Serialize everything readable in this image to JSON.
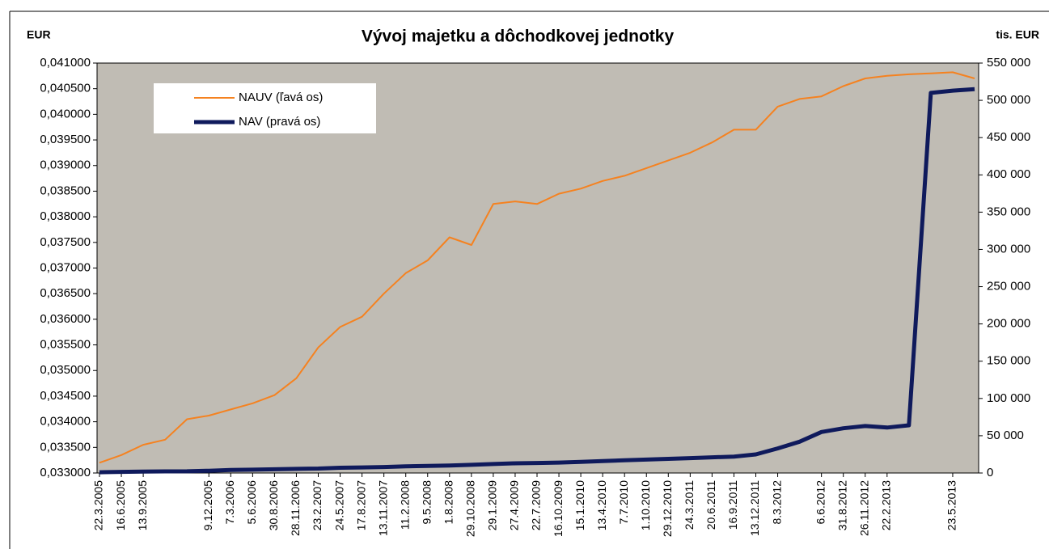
{
  "chart_data": {
    "type": "line",
    "title": "Vývoj majetku a dôchodkovej jednotky",
    "y_axis_label": "EUR",
    "y2_axis_label": "tis. EUR",
    "categories": [
      "22.3.2005",
      "16.6.2005",
      "13.9.2005",
      null,
      null,
      "9.12.2005",
      "7.3.2006",
      "5.6.2006",
      "30.8.2006",
      "28.11.2006",
      "23.2.2007",
      "24.5.2007",
      "17.8.2007",
      "13.11.2007",
      "11.2.2008",
      "9.5.2008",
      "1.8.2008",
      "29.10.2008",
      "29.1.2009",
      "27.4.2009",
      "22.7.2009",
      "16.10.2009",
      "15.1.2010",
      "13.4.2010",
      "7.7.2010",
      "1.10.2010",
      "29.12.2010",
      "24.3.2011",
      "20.6.2011",
      "16.9.2011",
      "13.12.2011",
      "8.3.2012",
      null,
      "6.6.2012",
      "31.8.2012",
      "26.11.2012",
      "22.2.2013",
      null,
      null,
      "23.5.2013",
      null
    ],
    "series": [
      {
        "name": "NAUV (ľavá os)",
        "color": "#f58220",
        "width": 2,
        "values": [
          0.0332,
          0.03335,
          0.03355,
          0.03365,
          0.03405,
          0.03412,
          0.03424,
          0.03436,
          0.03452,
          0.03485,
          0.03545,
          0.03585,
          0.03605,
          0.0365,
          0.0369,
          0.03715,
          0.0376,
          0.03745,
          0.03825,
          0.0383,
          0.03825,
          0.03845,
          0.03855,
          0.0387,
          0.0388,
          0.03895,
          0.0391,
          0.03925,
          0.03945,
          0.0397,
          0.0397,
          0.04015,
          0.0403,
          0.04035,
          0.04055,
          0.0407,
          0.04075,
          0.04078,
          0.0408,
          0.04082,
          0.0407
        ]
      },
      {
        "name": "NAV (pravá os)",
        "color": "#0f1a5c",
        "width": 5,
        "axis": "y2",
        "values": [
          1000,
          1500,
          2000,
          2200,
          2300,
          3000,
          4000,
          4500,
          5000,
          5500,
          6000,
          7000,
          7500,
          8000,
          9000,
          9500,
          10000,
          11000,
          12000,
          13000,
          13500,
          14000,
          15000,
          16000,
          17000,
          18000,
          19000,
          20000,
          21000,
          22000,
          25000,
          33000,
          42000,
          55000,
          60000,
          63000,
          61000,
          64000,
          510000,
          513000,
          515000
        ]
      }
    ],
    "ylim": [
      0.033,
      0.041
    ],
    "yticks": [
      {
        "value": 0.033,
        "label": "0,033000"
      },
      {
        "value": 0.0335,
        "label": "0,033500"
      },
      {
        "value": 0.034,
        "label": "0,034000"
      },
      {
        "value": 0.0345,
        "label": "0,034500"
      },
      {
        "value": 0.035,
        "label": "0,035000"
      },
      {
        "value": 0.0355,
        "label": "0,035500"
      },
      {
        "value": 0.036,
        "label": "0,036000"
      },
      {
        "value": 0.0365,
        "label": "0,036500"
      },
      {
        "value": 0.037,
        "label": "0,037000"
      },
      {
        "value": 0.0375,
        "label": "0,037500"
      },
      {
        "value": 0.038,
        "label": "0,038000"
      },
      {
        "value": 0.0385,
        "label": "0,038500"
      },
      {
        "value": 0.039,
        "label": "0,039000"
      },
      {
        "value": 0.0395,
        "label": "0,039500"
      },
      {
        "value": 0.04,
        "label": "0,040000"
      },
      {
        "value": 0.0405,
        "label": "0,040500"
      },
      {
        "value": 0.041,
        "label": "0,041000"
      }
    ],
    "y2lim": [
      0,
      550000
    ],
    "y2ticks": [
      0,
      {
        "value": 50000,
        "label": "50 000"
      },
      {
        "value": 100000,
        "label": "100 000"
      },
      {
        "value": 150000,
        "label": "150 000"
      },
      {
        "value": 200000,
        "label": "200 000"
      },
      {
        "value": 250000,
        "label": "250 000"
      },
      {
        "value": 300000,
        "label": "300 000"
      },
      {
        "value": 350000,
        "label": "350 000"
      },
      {
        "value": 400000,
        "label": "400 000"
      },
      {
        "value": 450000,
        "label": "450 000"
      },
      {
        "value": 500000,
        "label": "500 000"
      },
      {
        "value": 550000,
        "label": "550 000"
      }
    ],
    "plot_background": "#c0bcb4",
    "legend": "top-left"
  }
}
